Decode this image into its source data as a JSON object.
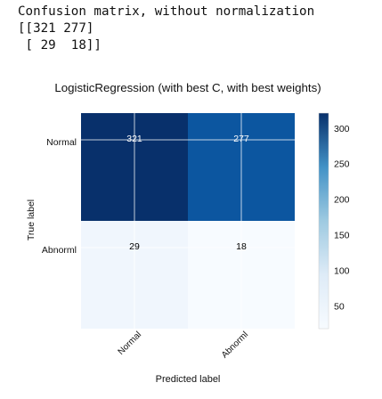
{
  "console": {
    "heading": "Confusion matrix, without normalization",
    "matrix_lines": [
      "[[321 277]",
      " [ 29  18]]"
    ]
  },
  "chart_data": {
    "type": "heatmap",
    "title": "LogisticRegression (with best C, with best weights)",
    "xlabel": "Predicted label",
    "ylabel": "True label",
    "x_categories": [
      "Normal",
      "Abnorml"
    ],
    "y_categories": [
      "Normal",
      "Abnorml"
    ],
    "matrix": [
      [
        321,
        277
      ],
      [
        29,
        18
      ]
    ],
    "cell_labels": [
      [
        "321",
        "277"
      ],
      [
        "29",
        "18"
      ]
    ],
    "colormap": "Blues",
    "colorbar": {
      "min": 18,
      "max": 321,
      "ticks": [
        50,
        100,
        150,
        200,
        250,
        300
      ]
    },
    "grid": true,
    "colors": {
      "low": "#f7fbff",
      "mid": "#6baed6",
      "high": "#08306b",
      "text_dark": "#000000",
      "text_light": "#ffffff"
    }
  }
}
